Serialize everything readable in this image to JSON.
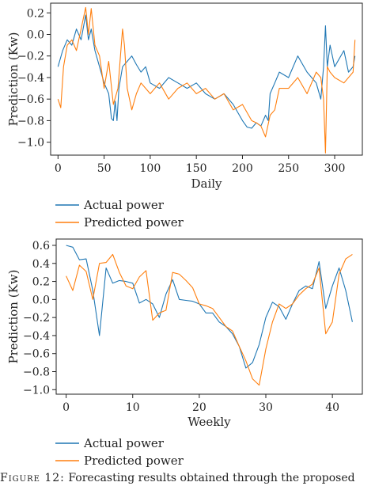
{
  "colors": {
    "actual": "#1f77b4",
    "predicted": "#ff7f0e"
  },
  "caption": {
    "label": "Figure 12:",
    "text": "Forecasting results obtained through the proposed"
  },
  "chart_data": [
    {
      "type": "line",
      "xlabel": "Daily",
      "ylabel": "Prediction (Kw)",
      "xlim": [
        -8,
        330
      ],
      "ylim": [
        -1.12,
        0.29
      ],
      "xticks": [
        0,
        50,
        100,
        150,
        200,
        250,
        300
      ],
      "yticks": [
        0.2,
        0.0,
        -0.2,
        -0.4,
        -0.6,
        -0.8,
        -1.0
      ],
      "legend_position": "below",
      "series": [
        {
          "name": "Actual power",
          "color": "#1f77b4",
          "x": [
            0,
            5,
            10,
            15,
            20,
            25,
            30,
            33,
            36,
            40,
            45,
            50,
            55,
            58,
            60,
            62,
            64,
            66,
            70,
            75,
            80,
            85,
            90,
            95,
            100,
            110,
            120,
            130,
            140,
            150,
            160,
            170,
            180,
            190,
            200,
            205,
            210,
            215,
            220,
            225,
            228,
            230,
            235,
            240,
            250,
            260,
            270,
            280,
            285,
            288,
            290,
            292,
            295,
            300,
            310,
            315,
            320,
            322
          ],
          "y": [
            -0.3,
            -0.15,
            -0.05,
            -0.1,
            0.05,
            -0.05,
            0.18,
            -0.05,
            0.05,
            -0.15,
            -0.3,
            -0.45,
            -0.55,
            -0.78,
            -0.8,
            -0.62,
            -0.8,
            -0.5,
            -0.3,
            -0.25,
            -0.2,
            -0.28,
            -0.35,
            -0.3,
            -0.45,
            -0.5,
            -0.4,
            -0.45,
            -0.5,
            -0.45,
            -0.55,
            -0.6,
            -0.55,
            -0.65,
            -0.8,
            -0.86,
            -0.87,
            -0.82,
            -0.85,
            -0.75,
            -0.8,
            -0.55,
            -0.45,
            -0.35,
            -0.4,
            -0.2,
            -0.35,
            -0.45,
            -0.6,
            -0.3,
            0.08,
            -0.3,
            -0.1,
            -0.3,
            -0.15,
            -0.35,
            -0.3,
            -0.2
          ]
        },
        {
          "name": "Predicted power",
          "color": "#ff7f0e",
          "x": [
            0,
            3,
            6,
            10,
            15,
            20,
            25,
            30,
            33,
            36,
            40,
            45,
            50,
            55,
            60,
            65,
            70,
            72,
            75,
            80,
            85,
            90,
            95,
            100,
            110,
            120,
            130,
            140,
            150,
            160,
            170,
            180,
            190,
            200,
            210,
            215,
            220,
            225,
            230,
            235,
            240,
            250,
            260,
            270,
            280,
            285,
            288,
            290,
            292,
            295,
            300,
            310,
            320,
            322
          ],
          "y": [
            -0.6,
            -0.68,
            -0.3,
            -0.1,
            -0.05,
            -0.15,
            0.05,
            0.25,
            0.0,
            0.24,
            -0.1,
            -0.2,
            -0.5,
            -0.25,
            -0.65,
            -0.5,
            0.05,
            -0.1,
            -0.5,
            -0.7,
            -0.55,
            -0.45,
            -0.5,
            -0.55,
            -0.45,
            -0.6,
            -0.5,
            -0.45,
            -0.55,
            -0.5,
            -0.6,
            -0.55,
            -0.7,
            -0.65,
            -0.8,
            -0.82,
            -0.85,
            -0.95,
            -0.75,
            -0.7,
            -0.5,
            -0.5,
            -0.4,
            -0.55,
            -0.35,
            -0.4,
            -0.6,
            -1.1,
            -0.3,
            -0.35,
            -0.4,
            -0.45,
            -0.35,
            -0.05
          ]
        }
      ]
    },
    {
      "type": "line",
      "xlabel": "Weekly",
      "ylabel": "Prediction (Kw)",
      "xlim": [
        -1.5,
        44.5
      ],
      "ylim": [
        -1.05,
        0.67
      ],
      "xticks": [
        0,
        10,
        20,
        30,
        40
      ],
      "yticks": [
        0.6,
        0.4,
        0.2,
        0.0,
        -0.2,
        -0.4,
        -0.6,
        -0.8,
        -1.0
      ],
      "legend_position": "below",
      "series": [
        {
          "name": "Actual power",
          "color": "#1f77b4",
          "x": [
            0,
            1,
            2,
            3,
            4,
            5,
            6,
            7,
            8,
            9,
            10,
            11,
            12,
            13,
            14,
            15,
            16,
            17,
            18,
            19,
            20,
            21,
            22,
            23,
            24,
            25,
            26,
            27,
            28,
            29,
            30,
            31,
            32,
            33,
            34,
            35,
            36,
            37,
            38,
            39,
            40,
            41,
            42,
            43
          ],
          "y": [
            0.6,
            0.58,
            0.44,
            0.45,
            0.1,
            -0.4,
            0.35,
            0.18,
            0.21,
            0.2,
            0.18,
            -0.04,
            0.0,
            -0.05,
            -0.2,
            0.06,
            0.22,
            0.0,
            -0.01,
            -0.02,
            -0.05,
            -0.15,
            -0.15,
            -0.25,
            -0.3,
            -0.38,
            -0.52,
            -0.76,
            -0.7,
            -0.5,
            -0.2,
            -0.03,
            -0.08,
            -0.22,
            -0.05,
            0.1,
            0.15,
            0.12,
            0.42,
            -0.1,
            0.15,
            0.35,
            0.1,
            -0.25
          ]
        },
        {
          "name": "Predicted power",
          "color": "#ff7f0e",
          "x": [
            0,
            1,
            2,
            3,
            4,
            5,
            6,
            7,
            8,
            9,
            10,
            11,
            12,
            13,
            14,
            15,
            16,
            17,
            18,
            19,
            20,
            21,
            22,
            23,
            24,
            25,
            26,
            27,
            28,
            29,
            30,
            31,
            32,
            33,
            34,
            35,
            36,
            37,
            38,
            39,
            40,
            41,
            42,
            43
          ],
          "y": [
            0.26,
            0.1,
            0.38,
            0.31,
            0.0,
            0.4,
            0.41,
            0.5,
            0.3,
            0.15,
            0.12,
            0.25,
            0.32,
            -0.23,
            -0.15,
            -0.12,
            0.3,
            0.28,
            0.21,
            0.13,
            -0.05,
            -0.07,
            -0.1,
            -0.2,
            -0.3,
            -0.35,
            -0.52,
            -0.68,
            -0.88,
            -0.95,
            -0.55,
            -0.25,
            -0.05,
            -0.1,
            -0.05,
            0.05,
            0.12,
            0.17,
            0.35,
            -0.38,
            -0.25,
            0.28,
            0.45,
            0.5
          ]
        }
      ]
    }
  ]
}
